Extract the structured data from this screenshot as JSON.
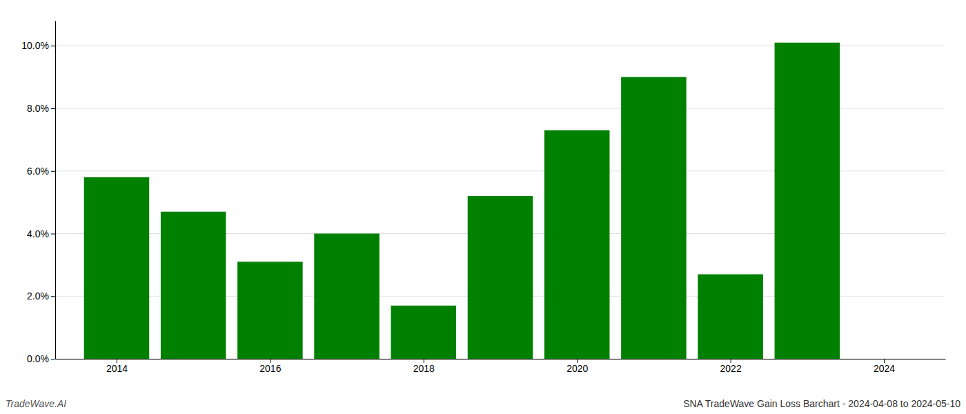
{
  "chart_data": {
    "type": "bar",
    "title": "SNA TradeWave Gain Loss Barchart - 2024-04-08 to 2024-05-10",
    "annotations": [
      {
        "text": "TradeWave.AI"
      }
    ],
    "x": [
      2014,
      2015,
      2016,
      2017,
      2018,
      2019,
      2020,
      2021,
      2022,
      2023
    ],
    "values": [
      0.058,
      0.047,
      0.031,
      0.04,
      0.017,
      0.052,
      0.073,
      0.09,
      0.027,
      0.101
    ],
    "color": "#008000",
    "xlim": [
      2013.2,
      2024.8
    ],
    "xticks": [
      2014,
      2016,
      2018,
      2020,
      2022,
      2024
    ],
    "ylim": [
      0,
      0.108
    ],
    "yticks": [
      {
        "value": 0.0,
        "label": "0.0%"
      },
      {
        "value": 0.02,
        "label": "2.0%"
      },
      {
        "value": 0.04,
        "label": "4.0%"
      },
      {
        "value": 0.06,
        "label": "6.0%"
      },
      {
        "value": 0.08,
        "label": "8.0%"
      },
      {
        "value": 0.1,
        "label": "10.0%"
      }
    ],
    "grid": true
  }
}
